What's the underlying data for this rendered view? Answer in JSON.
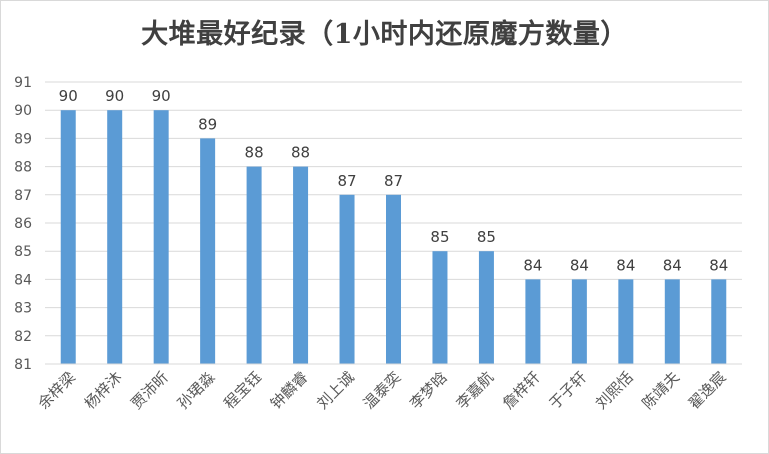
{
  "chart_data": {
    "type": "bar",
    "title": "大堆最好纪录（1小时内还原魔方数量）",
    "xlabel": "",
    "ylabel": "",
    "categories": [
      "余梓梁",
      "杨梓沐",
      "贾沛昕",
      "孙珺淼",
      "程宝钰",
      "钟麟睿",
      "刘上诚",
      "温泰奕",
      "李梦晗",
      "李嘉航",
      "詹梓轩",
      "于子轩",
      "刘熙恬",
      "陈靖夫",
      "翟逸宸"
    ],
    "values": [
      90,
      90,
      90,
      89,
      88,
      88,
      87,
      87,
      85,
      85,
      84,
      84,
      84,
      84,
      84
    ],
    "ylim": [
      81,
      91
    ],
    "yticks": [
      81,
      82,
      83,
      84,
      85,
      86,
      87,
      88,
      89,
      90,
      91
    ],
    "grid": true,
    "data_labels": true,
    "bar_color": "#5b9bd5"
  }
}
